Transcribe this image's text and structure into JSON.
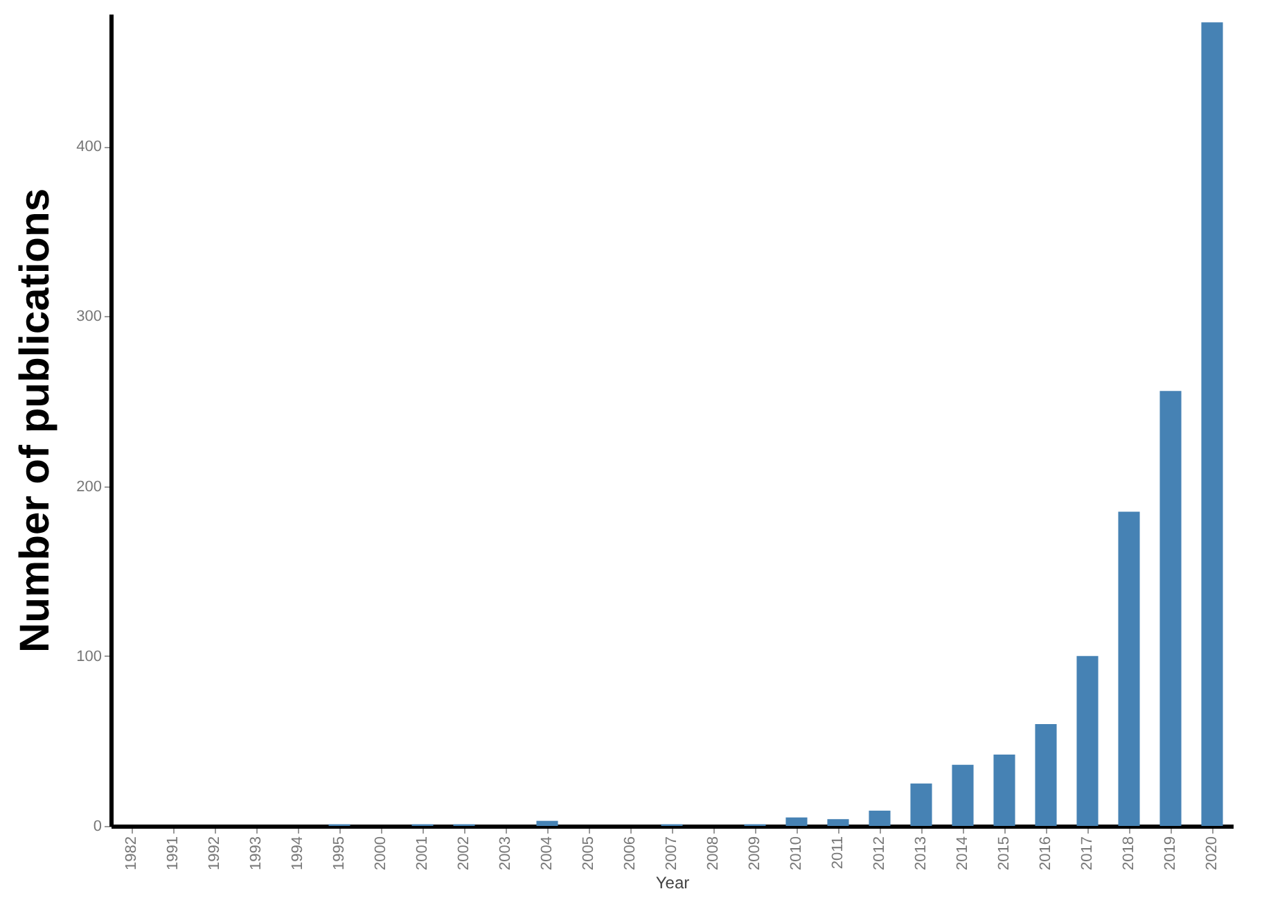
{
  "chart_data": {
    "type": "bar",
    "xlabel": "Year",
    "ylabel": "Number of publications",
    "categories": [
      "1982",
      "1991",
      "1992",
      "1993",
      "1994",
      "1995",
      "2000",
      "2001",
      "2002",
      "2003",
      "2004",
      "2005",
      "2006",
      "2007",
      "2008",
      "2009",
      "2010",
      "2011",
      "2012",
      "2013",
      "2014",
      "2015",
      "2016",
      "2017",
      "2018",
      "2019",
      "2020"
    ],
    "values": [
      0,
      0,
      0,
      0,
      0,
      1,
      0,
      1,
      1,
      0,
      3,
      0,
      0,
      1,
      0,
      1,
      5,
      4,
      9,
      25,
      36,
      42,
      60,
      100,
      185,
      256,
      473
    ],
    "color": "#4682b4",
    "ylim": [
      0,
      478
    ],
    "yticks": [
      0,
      100,
      200,
      300,
      400
    ],
    "grid": false
  }
}
